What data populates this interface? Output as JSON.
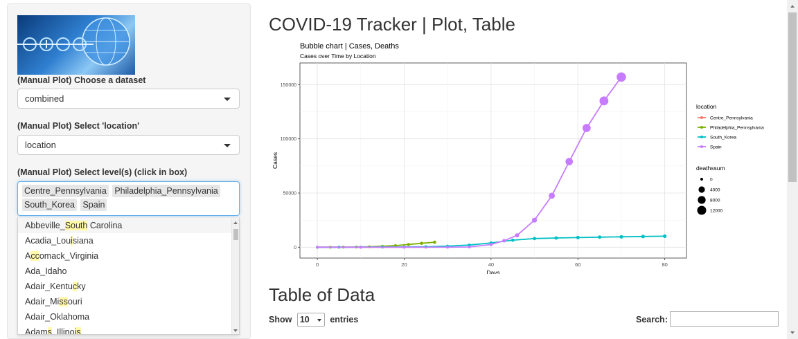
{
  "sidebar": {
    "dataset_label": "(Manual Plot) Choose a dataset",
    "dataset_value": "combined",
    "location_label": "(Manual Plot) Select 'location'",
    "location_value": "location",
    "levels_label": "(Manual Plot) Select level(s) (click in box)",
    "selected_levels": [
      "Centre_Pennsylvania",
      "Philadelphia_Pennsylvania",
      "South_Korea",
      "Spain"
    ],
    "options": [
      {
        "pre": "Abbeville_",
        "hl": "South",
        "post": " Carolina"
      },
      {
        "pre": "Acadia_Lou",
        "hl": "i",
        "post": "siana"
      },
      {
        "pre": "A",
        "hl": "cc",
        "post": "omack_Virginia"
      },
      {
        "pre": "Ada_Idaho",
        "hl": "",
        "post": ""
      },
      {
        "pre": "Adair_Kentu",
        "hl": "c",
        "post": "ky"
      },
      {
        "pre": "Adair_Mi",
        "hl": "ss",
        "post": "ouri"
      },
      {
        "pre": "Adair_Oklahoma",
        "hl": "",
        "post": ""
      },
      {
        "pre": "Adam",
        "hl": "s",
        "post": "_Illino",
        "hl2": "is",
        "post2": ""
      }
    ]
  },
  "main": {
    "title": "COVID-19 Tracker | Plot, Table",
    "table_title": "Table of Data",
    "show_label": "Show",
    "entries_value": "10",
    "entries_label": "entries",
    "search_label": "Search:"
  },
  "chart_data": {
    "type": "scatter",
    "title": "Bubble chart | Cases, Deaths",
    "subtitle": "Cases over Time by Location",
    "xlabel": "Days",
    "ylabel": "Cases",
    "xlim": [
      -4,
      85
    ],
    "ylim": [
      -10000,
      170000
    ],
    "x_ticks": [
      0,
      20,
      40,
      60,
      80
    ],
    "y_ticks": [
      0,
      50000,
      100000,
      150000
    ],
    "y_tick_labels": [
      "0",
      "50000",
      "100000",
      "150000"
    ],
    "grid": true,
    "legend_placement": "right",
    "legend_color_title": "location",
    "legend_size_title": "deathssum",
    "size_legend": [
      0,
      4000,
      8000,
      12000
    ],
    "series": [
      {
        "name": "Centre_Pennsylvania",
        "color": "#F8766D",
        "x": [
          0,
          5,
          10,
          15,
          20,
          25
        ],
        "y": [
          0,
          5,
          10,
          20,
          40,
          60
        ],
        "deaths": [
          0,
          0,
          0,
          0,
          0,
          0
        ]
      },
      {
        "name": "Philadelphia_Pennsylvania",
        "color": "#7CAE00",
        "x": [
          0,
          3,
          6,
          9,
          12,
          15,
          18,
          21,
          24,
          27
        ],
        "y": [
          0,
          10,
          50,
          150,
          400,
          900,
          1500,
          2500,
          3600,
          4600
        ],
        "deaths": [
          0,
          0,
          0,
          0,
          0,
          5,
          10,
          20,
          40,
          60
        ]
      },
      {
        "name": "South_Korea",
        "color": "#00BFC4",
        "x": [
          0,
          5,
          10,
          15,
          20,
          25,
          30,
          35,
          40,
          45,
          50,
          55,
          60,
          65,
          70,
          75,
          80
        ],
        "y": [
          0,
          30,
          100,
          200,
          300,
          500,
          1000,
          2000,
          4000,
          6500,
          8000,
          8500,
          8900,
          9300,
          9600,
          9900,
          10200
        ],
        "deaths": [
          0,
          0,
          0,
          0,
          0,
          0,
          5,
          15,
          30,
          60,
          90,
          120,
          150,
          170,
          190,
          200,
          210
        ]
      },
      {
        "name": "Spain",
        "color": "#C77CFF",
        "x": [
          0,
          10,
          20,
          30,
          35,
          40,
          43,
          46,
          50,
          54,
          58,
          62,
          66,
          70
        ],
        "y": [
          0,
          0,
          0,
          0,
          200,
          2500,
          6000,
          11000,
          25000,
          47500,
          79000,
          110000,
          135000,
          157000
        ],
        "deaths": [
          0,
          0,
          0,
          0,
          2,
          60,
          200,
          600,
          1500,
          3500,
          6500,
          9000,
          11500,
          13500
        ]
      }
    ]
  }
}
